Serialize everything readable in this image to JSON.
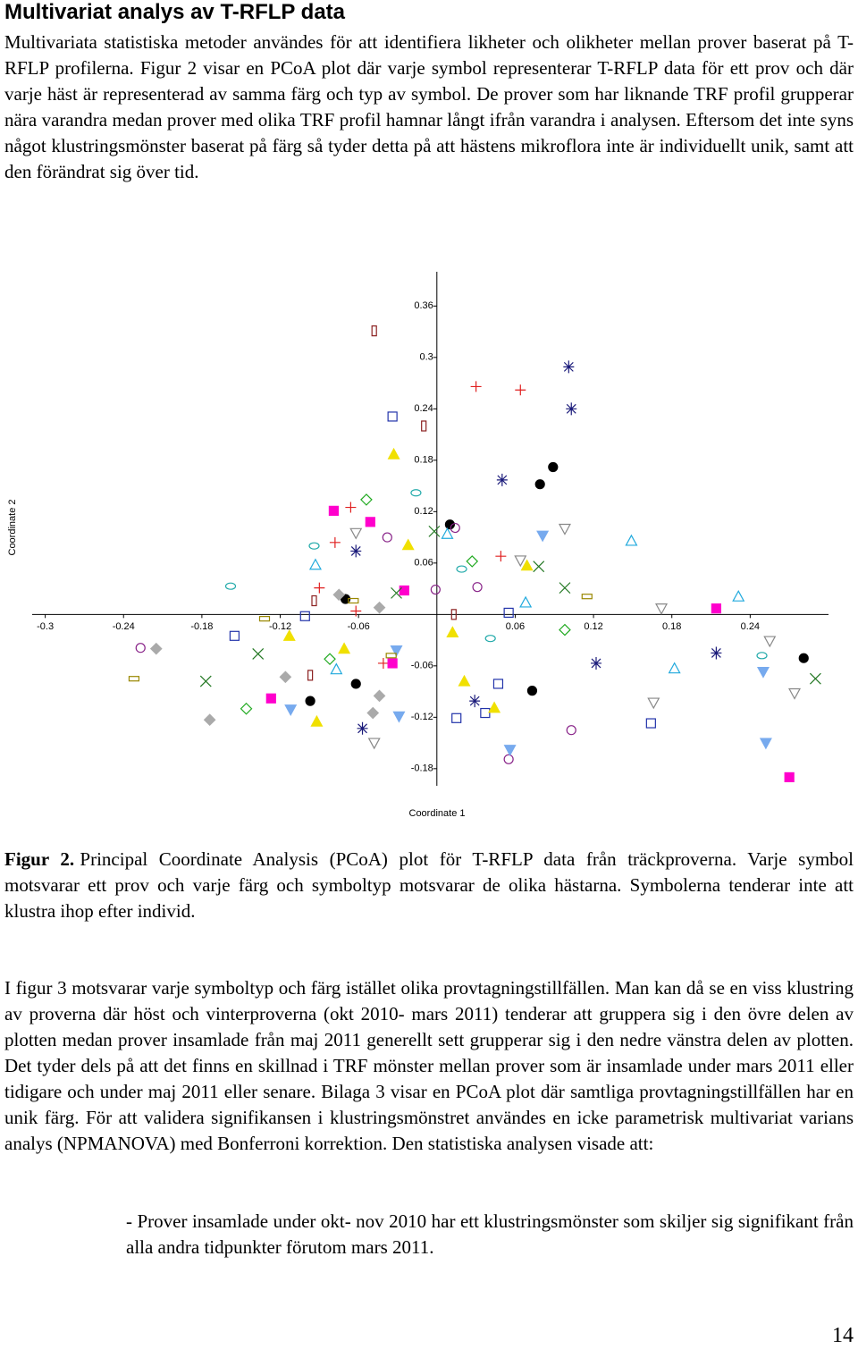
{
  "heading": "Multivariat analys av T-RFLP data",
  "paragraphs": [
    "Multivariata statistiska metoder användes för att identifiera likheter och olikheter mellan prover baserat på T-RFLP profilerna. Figur 2 visar en PCoA plot där varje symbol representerar T-RFLP data för ett prov och där varje häst är representerad av samma färg och typ av symbol. De prover som har liknande TRF profil grupperar nära varandra medan prover med olika TRF profil hamnar långt ifrån varandra i analysen. Eftersom det inte syns något klustringsmönster baserat på färg så tyder detta på att hästens mikroflora inte är individuellt unik, samt att den förändrat sig över tid.",
    "I figur 3 motsvarar varje symboltyp och färg istället olika provtagningstillfällen. Man kan då se en viss klustring av proverna där höst och vinterproverna (okt 2010- mars 2011) tenderar att gruppera sig i den övre delen av plotten medan prover insamlade från maj 2011 generellt sett grupperar sig i den nedre vänstra delen av plotten. Det tyder dels på att det finns en skillnad i TRF mönster mellan prover som är insamlade under mars 2011 eller tidigare och under maj 2011 eller senare. Bilaga 3 visar en PCoA plot där samtliga provtagningstillfällen har en unik färg. För att validera signifikansen i klustringsmönstret användes en icke parametrisk multivariat varians analys (NPMANOVA) med Bonferroni korrektion. Den statistiska analysen visade att:"
  ],
  "caption": {
    "label": "Figur 2.",
    "text": "Principal Coordinate Analysis (PCoA) plot för T-RFLP data från träckproverna. Varje symbol motsvarar ett prov och varje färg och symboltyp motsvarar de olika hästarna. Symbolerna tenderar inte att klustra ihop efter individ."
  },
  "bullet": "- Prover insamlade under okt- nov 2010 har ett klustringsmönster som skiljer sig signifikant från alla andra tidpunkter förutom mars 2011.",
  "page_number": "14",
  "chart_data": {
    "type": "scatter",
    "xlabel": "Coordinate 1",
    "ylabel": "Coordinate 2",
    "xlim": [
      -0.31,
      0.3
    ],
    "ylim": [
      -0.2,
      0.4
    ],
    "xticks": [
      -0.3,
      -0.24,
      -0.18,
      -0.12,
      -0.06,
      0.06,
      0.12,
      0.18,
      0.24
    ],
    "yticks": [
      -0.18,
      -0.12,
      -0.06,
      0.06,
      0.12,
      0.18,
      0.24,
      0.3,
      0.36
    ],
    "series": [
      {
        "symbol": "rect-tall",
        "color": "#8b2020",
        "x": [
          -0.048,
          -0.01,
          -0.094,
          -0.097,
          0.013
        ],
        "values": [
          0.331,
          0.22,
          0.016,
          -0.071,
          0.0
        ]
      },
      {
        "symbol": "plus",
        "color": "#e02020",
        "x": [
          0.03,
          0.064,
          -0.066,
          -0.078,
          -0.09,
          -0.062,
          0.049,
          -0.041
        ],
        "values": [
          0.266,
          0.262,
          0.125,
          0.084,
          0.031,
          0.004,
          0.068,
          -0.057
        ]
      },
      {
        "symbol": "asterisk",
        "color": "#1a1a7a",
        "x": [
          0.101,
          0.103,
          0.05,
          -0.062,
          0.122,
          0.214,
          0.029,
          -0.057
        ],
        "values": [
          0.289,
          0.24,
          0.157,
          0.074,
          -0.057,
          -0.045,
          -0.101,
          -0.133
        ]
      },
      {
        "symbol": "circle-filled",
        "color": "#000000",
        "x": [
          0.089,
          0.079,
          0.01,
          -0.07,
          -0.062,
          -0.097,
          0.073,
          0.281
        ],
        "values": [
          0.172,
          0.152,
          0.105,
          0.018,
          -0.081,
          -0.101,
          -0.089,
          -0.051
        ]
      },
      {
        "symbol": "square",
        "color": "#2233aa",
        "x": [
          -0.034,
          -0.101,
          -0.155,
          0.055,
          0.047,
          0.015,
          0.037,
          0.164
        ],
        "values": [
          0.231,
          -0.002,
          -0.025,
          0.002,
          -0.081,
          -0.121,
          -0.115,
          -0.127
        ]
      },
      {
        "symbol": "triangle-filled",
        "color": "#f0e000",
        "x": [
          -0.033,
          -0.022,
          0.069,
          -0.113,
          0.012,
          -0.071,
          0.021,
          0.044,
          -0.092
        ],
        "values": [
          0.187,
          0.081,
          0.057,
          -0.025,
          -0.021,
          -0.04,
          -0.078,
          -0.109,
          -0.125
        ]
      },
      {
        "symbol": "square-filled",
        "color": "#ff00cc",
        "x": [
          -0.079,
          -0.051,
          -0.025,
          0.214,
          -0.127,
          0.27,
          -0.034
        ],
        "values": [
          0.121,
          0.108,
          0.028,
          0.007,
          -0.098,
          -0.19,
          -0.057
        ]
      },
      {
        "symbol": "diamond",
        "color": "#22aa22",
        "x": [
          -0.054,
          0.027,
          -0.082,
          -0.146,
          0.098
        ],
        "values": [
          0.134,
          0.062,
          -0.052,
          -0.11,
          -0.018
        ]
      },
      {
        "symbol": "circle",
        "color": "#882288",
        "x": [
          -0.038,
          -0.001,
          0.031,
          0.014,
          0.103,
          0.055,
          -0.227
        ],
        "values": [
          0.09,
          0.029,
          0.032,
          0.101,
          -0.135,
          -0.169,
          -0.039
        ]
      },
      {
        "symbol": "ellipse",
        "color": "#22aaaa",
        "x": [
          -0.094,
          -0.158,
          -0.016,
          0.019,
          0.041,
          0.249
        ],
        "values": [
          0.08,
          0.033,
          0.142,
          0.053,
          -0.028,
          -0.048
        ]
      },
      {
        "symbol": "triangle",
        "color": "#22aadd",
        "x": [
          -0.093,
          0.008,
          0.068,
          0.149,
          0.231,
          0.182,
          -0.077
        ],
        "values": [
          0.058,
          0.094,
          0.014,
          0.086,
          0.021,
          -0.063,
          -0.064
        ]
      },
      {
        "symbol": "triangle-down",
        "color": "#888888",
        "x": [
          -0.062,
          0.098,
          0.064,
          0.172,
          0.255,
          0.166,
          0.274,
          -0.048
        ],
        "values": [
          0.095,
          0.1,
          0.063,
          0.007,
          -0.031,
          -0.103,
          -0.092,
          -0.15
        ]
      },
      {
        "symbol": "triangle-down-filled",
        "color": "#77aaee",
        "x": [
          0.081,
          0.25,
          0.252,
          0.056,
          -0.112,
          -0.029,
          -0.031
        ],
        "values": [
          0.092,
          -0.067,
          -0.15,
          -0.158,
          -0.111,
          -0.119,
          -0.042
        ]
      },
      {
        "symbol": "x",
        "color": "#227722",
        "x": [
          -0.002,
          0.078,
          0.098,
          0.29,
          -0.177,
          -0.137,
          -0.031
        ],
        "values": [
          0.097,
          0.056,
          0.031,
          -0.075,
          -0.078,
          -0.046,
          0.025
        ]
      },
      {
        "symbol": "diamond-filled",
        "color": "#aaaaaa",
        "x": [
          -0.075,
          -0.044,
          -0.215,
          -0.174,
          -0.116,
          -0.049,
          -0.044
        ],
        "values": [
          0.023,
          0.008,
          -0.04,
          -0.123,
          -0.073,
          -0.115,
          -0.095
        ]
      },
      {
        "symbol": "rect-wide",
        "color": "#998800",
        "x": [
          -0.132,
          -0.064,
          0.115,
          -0.232,
          -0.035
        ],
        "values": [
          -0.005,
          0.016,
          0.021,
          -0.075,
          -0.048
        ]
      }
    ]
  }
}
